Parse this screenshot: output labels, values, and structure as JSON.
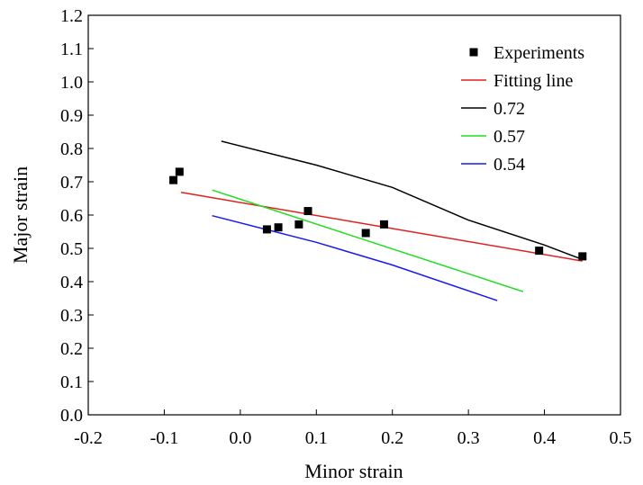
{
  "chart_data": {
    "type": "scatter",
    "xlabel": "Minor strain",
    "ylabel": "Major strain",
    "xlim": [
      -0.2,
      0.5
    ],
    "ylim": [
      0.0,
      1.2
    ],
    "x_ticks": [
      "-0.2",
      "-0.1",
      "0.0",
      "0.1",
      "0.2",
      "0.3",
      "0.4",
      "0.5"
    ],
    "y_ticks": [
      "0.0",
      "0.1",
      "0.2",
      "0.3",
      "0.4",
      "0.5",
      "0.6",
      "0.7",
      "0.8",
      "0.9",
      "1.0",
      "1.1",
      "1.2"
    ],
    "grid": false,
    "legend_position": "top-right",
    "series": [
      {
        "name": "Experiments",
        "kind": "scatter",
        "color": "#000000",
        "points": [
          [
            -0.088,
            0.705
          ],
          [
            -0.08,
            0.73
          ],
          [
            0.035,
            0.557
          ],
          [
            0.05,
            0.563
          ],
          [
            0.077,
            0.572
          ],
          [
            0.089,
            0.612
          ],
          [
            0.165,
            0.546
          ],
          [
            0.189,
            0.572
          ],
          [
            0.393,
            0.493
          ],
          [
            0.45,
            0.476
          ]
        ]
      },
      {
        "name": "Fitting line",
        "kind": "line",
        "color": "#e02020",
        "points": [
          [
            -0.078,
            0.668
          ],
          [
            0.45,
            0.462
          ]
        ]
      },
      {
        "name": "0.72",
        "kind": "line",
        "color": "#000000",
        "points": [
          [
            -0.025,
            0.822
          ],
          [
            0.1,
            0.75
          ],
          [
            0.2,
            0.683
          ],
          [
            0.3,
            0.585
          ],
          [
            0.4,
            0.51
          ],
          [
            0.446,
            0.47
          ]
        ]
      },
      {
        "name": "0.57",
        "kind": "line",
        "color": "#22dd22",
        "points": [
          [
            -0.037,
            0.675
          ],
          [
            0.372,
            0.37
          ]
        ]
      },
      {
        "name": "0.54",
        "kind": "line",
        "color": "#1a1aee",
        "points": [
          [
            -0.037,
            0.598
          ],
          [
            0.1,
            0.518
          ],
          [
            0.2,
            0.45
          ],
          [
            0.338,
            0.343
          ]
        ]
      }
    ]
  }
}
